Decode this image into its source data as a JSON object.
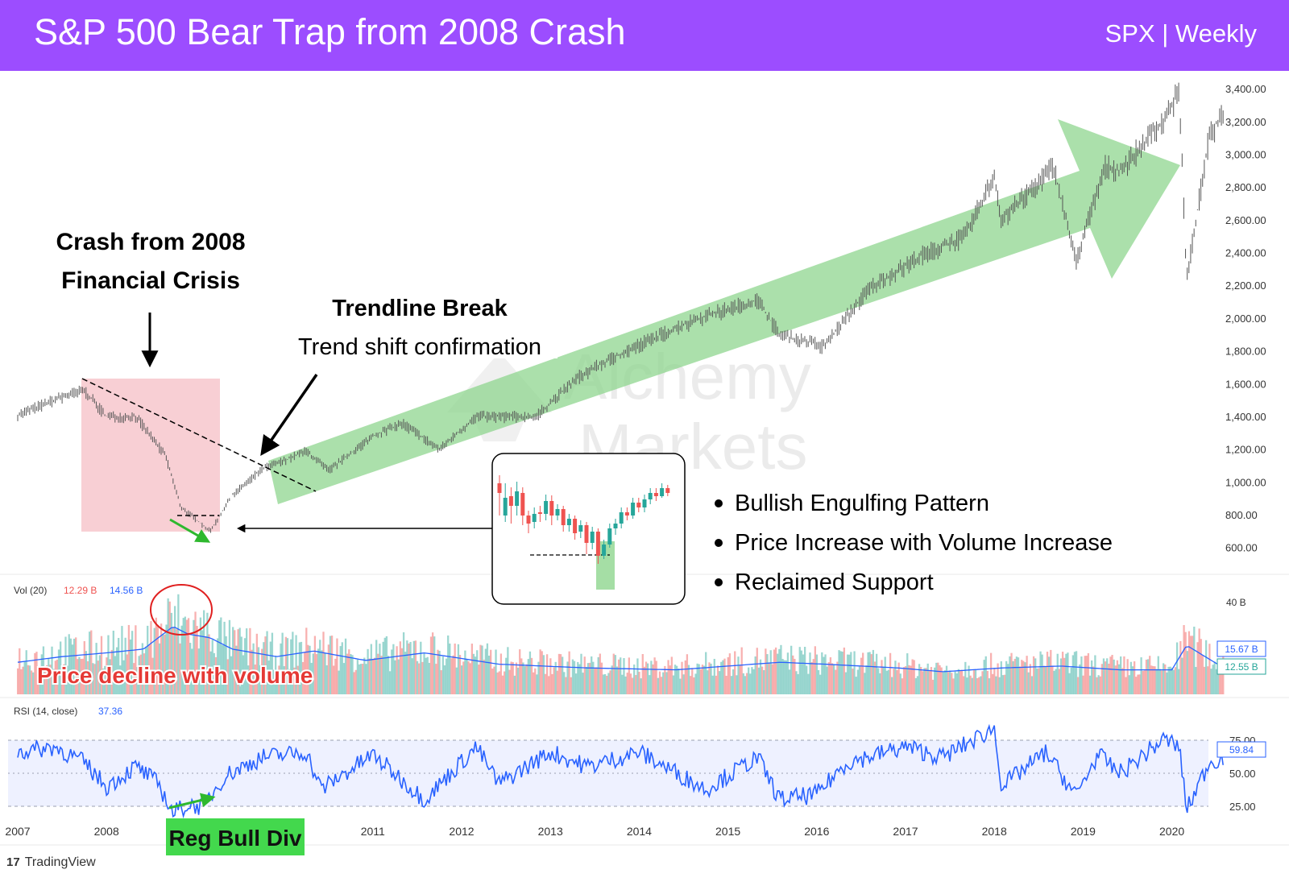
{
  "header": {
    "title": "S&P 500 Bear Trap from 2008 Crash",
    "subtitle": "SPX | Weekly",
    "background": "#9c4dff"
  },
  "watermark": {
    "line1": "Alchemy",
    "line2": "Markets"
  },
  "footer": {
    "logo_text": "TradingView"
  },
  "annotations": {
    "crash_title_1": "Crash from 2008",
    "crash_title_2": "Financial Crisis",
    "trendline_title": "Trendline Break",
    "trendline_sub": "Trend shift confirmation",
    "bullets": [
      "Bullish Engulfing Pattern",
      "Price Increase with Volume Increase",
      "Reclaimed Support"
    ],
    "volume_note": "Price decline with volume",
    "rsi_note": "Reg Bull Div"
  },
  "colors": {
    "up": "#26a69a",
    "down": "#ef5350",
    "rsi_line": "#2962ff",
    "vol_ma": "#2962ff",
    "arrow_fill": "#8fd68f",
    "crash_zone": "#f4b6bd",
    "reg_bull_bg": "#43d84d"
  },
  "chart_data": [
    {
      "type": "line",
      "panel": "price",
      "series": [
        {
          "x": [
            "2007-01",
            "2007-07",
            "2007-10",
            "2008-01",
            "2008-05",
            "2008-09",
            "2008-11",
            "2009-03",
            "2009-06",
            "2009-10",
            "2010-01",
            "2010-04",
            "2010-07",
            "2011-01",
            "2011-05",
            "2011-10",
            "2012-03",
            "2012-11",
            "2013-05",
            "2014-01",
            "2014-09",
            "2015-05",
            "2015-08",
            "2016-02",
            "2016-08",
            "2017-03",
            "2017-09",
            "2018-01",
            "2018-02",
            "2018-09",
            "2018-12",
            "2019-04",
            "2019-06",
            "2019-12",
            "2020-02",
            "2020-03",
            "2020-06",
            "2020-08"
          ],
          "values": [
            1410,
            1520,
            1560,
            1400,
            1400,
            1160,
            850,
            700,
            920,
            1080,
            1130,
            1190,
            1070,
            1280,
            1360,
            1200,
            1400,
            1400,
            1650,
            1840,
            2000,
            2110,
            1900,
            1830,
            2180,
            2380,
            2500,
            2870,
            2600,
            2930,
            2350,
            2930,
            2900,
            3220,
            3390,
            2240,
            3100,
            3270
          ]
        }
      ],
      "ylabel": "",
      "ylim": [
        500,
        3450
      ],
      "yticks": [
        600,
        800,
        1000,
        1200,
        1400,
        1600,
        1800,
        2000,
        2200,
        2400,
        2600,
        2800,
        3000,
        3200,
        3400
      ],
      "ytick_labels": [
        "600.00",
        "800.00",
        "1,000.00",
        "1,200.00",
        "1,400.00",
        "1,600.00",
        "1,800.00",
        "2,000.00",
        "2,200.00",
        "2,400.00",
        "2,600.00",
        "2,800.00",
        "3,000.00",
        "3,200.00",
        "3,400.00"
      ],
      "grid": false
    },
    {
      "type": "bar",
      "panel": "volume",
      "label": "Vol (20)",
      "label_values": [
        "12.29 B",
        "14.56 B"
      ],
      "axis_label": "40 B",
      "ma_label": "15.67 B",
      "last_label": "12.55 B",
      "x": [
        "2007-01",
        "2007-07",
        "2008-01",
        "2008-06",
        "2008-10",
        "2008-12",
        "2009-03",
        "2009-06",
        "2009-12",
        "2010-05",
        "2010-12",
        "2011-08",
        "2012-06",
        "2013-06",
        "2014-06",
        "2015-08",
        "2016-02",
        "2016-12",
        "2017-06",
        "2018-02",
        "2018-10",
        "2019-06",
        "2020-01",
        "2020-03",
        "2020-08"
      ],
      "values": [
        17,
        20,
        22,
        24,
        36,
        32,
        30,
        24,
        20,
        23,
        18,
        22,
        16,
        14,
        13,
        17,
        16,
        14,
        12,
        14,
        15,
        13,
        13,
        26,
        14
      ],
      "ylim": [
        0,
        45
      ]
    },
    {
      "type": "line",
      "panel": "rsi",
      "label": "RSI (14, close)",
      "last_value": "37.36",
      "current_label": "59.84",
      "x": [
        "2007-01",
        "2007-06",
        "2007-10",
        "2008-01",
        "2008-05",
        "2008-08",
        "2008-10",
        "2008-12",
        "2009-02",
        "2009-05",
        "2009-10",
        "2010-04",
        "2010-06",
        "2011-01",
        "2011-08",
        "2012-03",
        "2012-06",
        "2013-01",
        "2013-06",
        "2014-01",
        "2014-10",
        "2015-05",
        "2015-08",
        "2016-01",
        "2016-05",
        "2017-01",
        "2017-06",
        "2018-01",
        "2018-02",
        "2018-08",
        "2018-12",
        "2019-03",
        "2019-06",
        "2019-12",
        "2020-02",
        "2020-03",
        "2020-06",
        "2020-08"
      ],
      "values": [
        66,
        70,
        58,
        40,
        55,
        42,
        20,
        26,
        25,
        48,
        62,
        66,
        38,
        64,
        30,
        70,
        42,
        66,
        55,
        66,
        38,
        62,
        30,
        34,
        58,
        70,
        62,
        84,
        40,
        66,
        33,
        64,
        50,
        76,
        70,
        22,
        58,
        62
      ],
      "ylim": [
        15,
        90
      ],
      "yticks": [
        25,
        50,
        75
      ],
      "ytick_labels": [
        "25.00",
        "50.00",
        "75.00"
      ]
    }
  ],
  "x_axis": {
    "ticks": [
      "2007",
      "2008",
      "2009",
      "2010",
      "2011",
      "2012",
      "2013",
      "2014",
      "2015",
      "2016",
      "2017",
      "2018",
      "2019",
      "2020"
    ],
    "tick_labels": [
      "2007",
      "2008",
      "",
      "",
      "2011",
      "2012",
      "2013",
      "2014",
      "2015",
      "2016",
      "2017",
      "2018",
      "2019",
      "2020"
    ]
  }
}
